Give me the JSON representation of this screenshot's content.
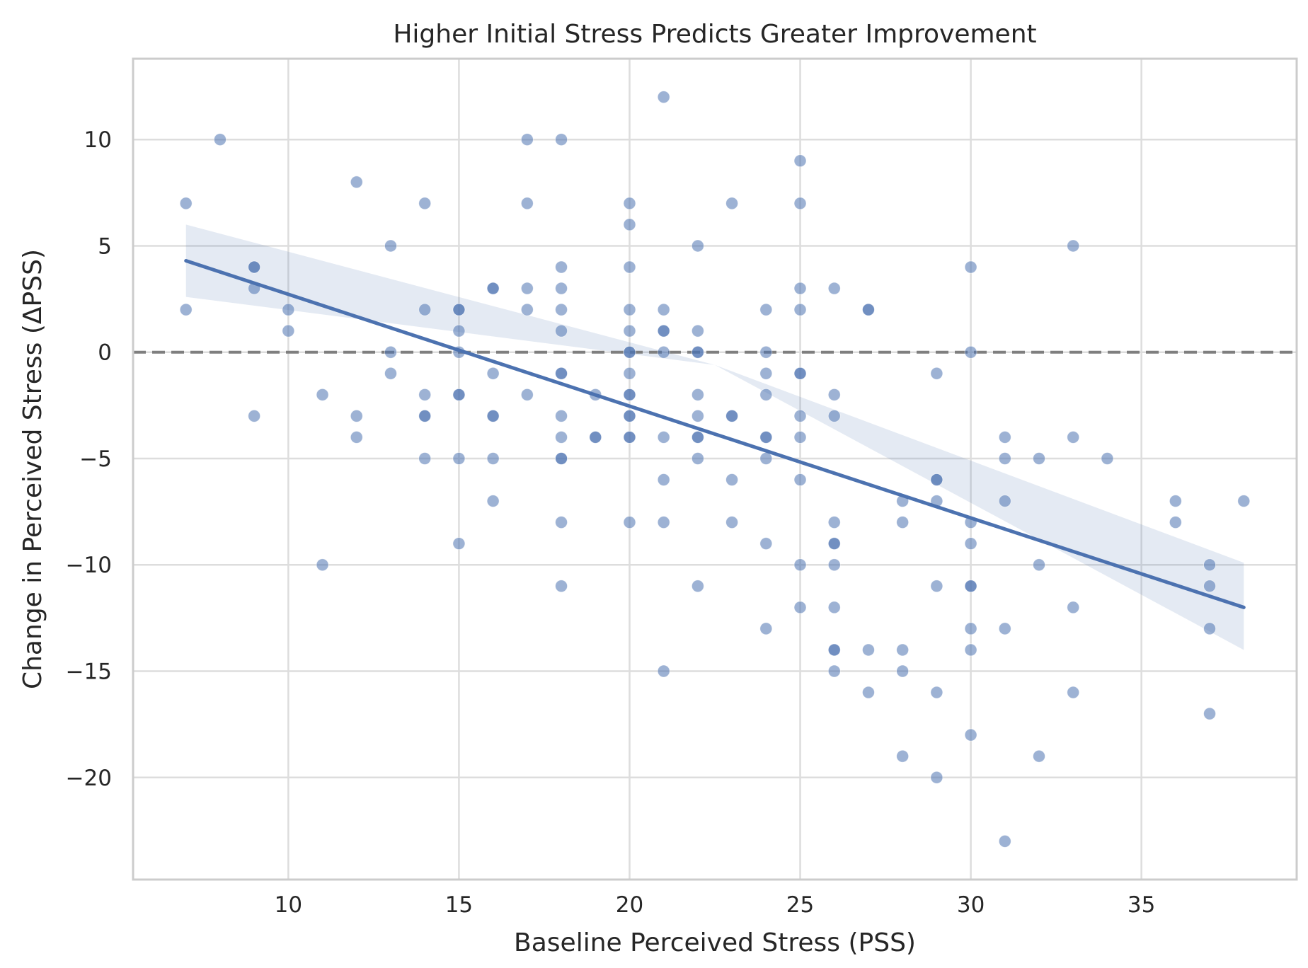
{
  "chart_data": {
    "type": "scatter",
    "title": "Higher Initial Stress Predicts Greater Improvement",
    "xlabel": "Baseline Perceived Stress (PSS)",
    "ylabel": "Change in Perceived Stress (ΔPSS)",
    "xlim": [
      5.45,
      39.55
    ],
    "ylim": [
      -24.8,
      13.8
    ],
    "xticks": [
      10,
      15,
      20,
      25,
      30,
      35
    ],
    "yticks": [
      10,
      5,
      0,
      -5,
      -10,
      -15,
      -20
    ],
    "ytick_labels": [
      "10",
      "5",
      "0",
      "−5",
      "−10",
      "−15",
      "−20"
    ],
    "grid": true,
    "reference_line": {
      "y": 0,
      "style": "dashed",
      "color": "#7f7f7f"
    },
    "regression": {
      "x_range": [
        7,
        38
      ],
      "y_at_start": 4.3,
      "y_at_end": -12.0,
      "ci_lower_start": 2.6,
      "ci_upper_start": 6.0,
      "ci_mid": -0.6,
      "ci_lower_end": -14.0,
      "ci_upper_end": -9.9,
      "color": "#4c72b0"
    },
    "point_color": "#4c72b0",
    "points": [
      [
        7,
        7
      ],
      [
        7,
        2
      ],
      [
        8,
        10
      ],
      [
        9,
        4
      ],
      [
        9,
        4
      ],
      [
        9,
        3
      ],
      [
        9,
        -3
      ],
      [
        10,
        2
      ],
      [
        10,
        1
      ],
      [
        11,
        -2
      ],
      [
        11,
        -10
      ],
      [
        12,
        8
      ],
      [
        12,
        -3
      ],
      [
        12,
        -4
      ],
      [
        13,
        5
      ],
      [
        13,
        0
      ],
      [
        13,
        -1
      ],
      [
        14,
        7
      ],
      [
        14,
        2
      ],
      [
        14,
        -2
      ],
      [
        14,
        -3
      ],
      [
        14,
        -3
      ],
      [
        14,
        -5
      ],
      [
        15,
        2
      ],
      [
        15,
        2
      ],
      [
        15,
        1
      ],
      [
        15,
        0
      ],
      [
        15,
        -2
      ],
      [
        15,
        -2
      ],
      [
        15,
        -5
      ],
      [
        15,
        -9
      ],
      [
        16,
        3
      ],
      [
        16,
        3
      ],
      [
        16,
        -1
      ],
      [
        16,
        -3
      ],
      [
        16,
        -3
      ],
      [
        16,
        -5
      ],
      [
        16,
        -7
      ],
      [
        17,
        10
      ],
      [
        17,
        7
      ],
      [
        17,
        3
      ],
      [
        17,
        2
      ],
      [
        17,
        -2
      ],
      [
        18,
        10
      ],
      [
        18,
        4
      ],
      [
        18,
        3
      ],
      [
        18,
        2
      ],
      [
        18,
        1
      ],
      [
        18,
        -1
      ],
      [
        18,
        -1
      ],
      [
        18,
        -3
      ],
      [
        18,
        -4
      ],
      [
        18,
        -5
      ],
      [
        18,
        -5
      ],
      [
        18,
        -8
      ],
      [
        18,
        -11
      ],
      [
        19,
        -2
      ],
      [
        19,
        -4
      ],
      [
        19,
        -4
      ],
      [
        20,
        7
      ],
      [
        20,
        6
      ],
      [
        20,
        4
      ],
      [
        20,
        2
      ],
      [
        20,
        1
      ],
      [
        20,
        0
      ],
      [
        20,
        0
      ],
      [
        20,
        -1
      ],
      [
        20,
        -2
      ],
      [
        20,
        -2
      ],
      [
        20,
        -3
      ],
      [
        20,
        -3
      ],
      [
        20,
        -4
      ],
      [
        20,
        -4
      ],
      [
        20,
        -8
      ],
      [
        21,
        12
      ],
      [
        21,
        2
      ],
      [
        21,
        1
      ],
      [
        21,
        1
      ],
      [
        21,
        0
      ],
      [
        21,
        -4
      ],
      [
        21,
        -6
      ],
      [
        21,
        -8
      ],
      [
        21,
        -15
      ],
      [
        22,
        5
      ],
      [
        22,
        1
      ],
      [
        22,
        0
      ],
      [
        22,
        0
      ],
      [
        22,
        -2
      ],
      [
        22,
        -3
      ],
      [
        22,
        -4
      ],
      [
        22,
        -4
      ],
      [
        22,
        -5
      ],
      [
        22,
        -11
      ],
      [
        23,
        7
      ],
      [
        23,
        -3
      ],
      [
        23,
        -3
      ],
      [
        23,
        -6
      ],
      [
        23,
        -8
      ],
      [
        24,
        2
      ],
      [
        24,
        0
      ],
      [
        24,
        -1
      ],
      [
        24,
        -2
      ],
      [
        24,
        -4
      ],
      [
        24,
        -4
      ],
      [
        24,
        -5
      ],
      [
        24,
        -9
      ],
      [
        24,
        -13
      ],
      [
        25,
        9
      ],
      [
        25,
        7
      ],
      [
        25,
        3
      ],
      [
        25,
        2
      ],
      [
        25,
        -1
      ],
      [
        25,
        -1
      ],
      [
        25,
        -3
      ],
      [
        25,
        -4
      ],
      [
        25,
        -6
      ],
      [
        25,
        -10
      ],
      [
        25,
        -12
      ],
      [
        26,
        3
      ],
      [
        26,
        -2
      ],
      [
        26,
        -3
      ],
      [
        26,
        -8
      ],
      [
        26,
        -9
      ],
      [
        26,
        -9
      ],
      [
        26,
        -10
      ],
      [
        26,
        -12
      ],
      [
        26,
        -14
      ],
      [
        26,
        -14
      ],
      [
        26,
        -15
      ],
      [
        27,
        2
      ],
      [
        27,
        2
      ],
      [
        27,
        -14
      ],
      [
        27,
        -16
      ],
      [
        28,
        -7
      ],
      [
        28,
        -8
      ],
      [
        28,
        -14
      ],
      [
        28,
        -15
      ],
      [
        28,
        -19
      ],
      [
        29,
        -1
      ],
      [
        29,
        -6
      ],
      [
        29,
        -6
      ],
      [
        29,
        -7
      ],
      [
        29,
        -11
      ],
      [
        29,
        -16
      ],
      [
        29,
        -20
      ],
      [
        30,
        4
      ],
      [
        30,
        0
      ],
      [
        30,
        -8
      ],
      [
        30,
        -9
      ],
      [
        30,
        -11
      ],
      [
        30,
        -11
      ],
      [
        30,
        -13
      ],
      [
        30,
        -14
      ],
      [
        30,
        -18
      ],
      [
        31,
        -4
      ],
      [
        31,
        -5
      ],
      [
        31,
        -7
      ],
      [
        31,
        -13
      ],
      [
        31,
        -23
      ],
      [
        32,
        -5
      ],
      [
        32,
        -10
      ],
      [
        32,
        -19
      ],
      [
        33,
        5
      ],
      [
        33,
        -4
      ],
      [
        33,
        -12
      ],
      [
        33,
        -16
      ],
      [
        34,
        -5
      ],
      [
        36,
        -7
      ],
      [
        36,
        -8
      ],
      [
        37,
        -10
      ],
      [
        37,
        -11
      ],
      [
        37,
        -13
      ],
      [
        37,
        -17
      ],
      [
        38,
        -7
      ]
    ]
  }
}
